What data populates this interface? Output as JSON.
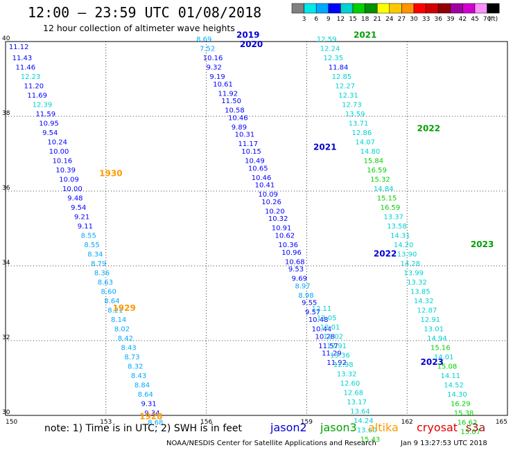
{
  "header": {
    "title": "12:00 – 23:59 UTC 01/08/2018",
    "subtitle": "12 hour collection of altimeter wave heights"
  },
  "footer": {
    "note": "note:  1) Time is in UTC; 2) SWH is in feet",
    "credit": "NOAA/NESDIS Center for Satellite Applications and Research",
    "generated": "Jan  9 13:27:53 UTC 2018"
  },
  "satellites": [
    {
      "name": "jason2",
      "color": "#0000d0"
    },
    {
      "name": "jason3",
      "color": "#00a000"
    },
    {
      "name": "altika",
      "color": "#ff9900"
    },
    {
      "name": "cryosat",
      "color": "#e00000"
    },
    {
      "name": "s3a",
      "color": "#a01818"
    }
  ],
  "colorbar": {
    "unit": "(ft)",
    "colors": [
      "#808080",
      "#00e8e8",
      "#00a8ff",
      "#0000ff",
      "#00d0d0",
      "#00d000",
      "#009000",
      "#ffff00",
      "#ffc800",
      "#ff9600",
      "#ff0000",
      "#d00000",
      "#900000",
      "#a000a0",
      "#d000d0",
      "#ff90ff",
      "#000000"
    ],
    "labels": [
      "3",
      "6",
      "9",
      "12",
      "15",
      "18",
      "21",
      "24",
      "27",
      "30",
      "33",
      "36",
      "39",
      "42",
      "45",
      "70"
    ]
  },
  "chart_data": {
    "type": "scatter",
    "xlabel": "",
    "ylabel": "",
    "xlim": [
      150,
      165
    ],
    "ylim": [
      30,
      40
    ],
    "xticks": [
      150,
      153,
      156,
      159,
      162,
      165
    ],
    "yticks": [
      30,
      32,
      34,
      36,
      38,
      40
    ],
    "grid": true,
    "units": "ft",
    "tracks": [
      {
        "satellite": "altika",
        "color": "#ff9900",
        "labels": [
          {
            "text": "1930",
            "lon": 152.8,
            "lat": 36.4
          },
          {
            "text": "1929",
            "lon": 153.2,
            "lat": 32.8
          },
          {
            "text": "1928",
            "lon": 154.0,
            "lat": 29.9
          }
        ],
        "points": [
          [
            150.1,
            39.8,
            "11.12"
          ],
          [
            150.2,
            39.5,
            "11.43"
          ],
          [
            150.3,
            39.25,
            "11.46"
          ],
          [
            150.45,
            39.0,
            "12.23"
          ],
          [
            150.55,
            38.75,
            "11.20"
          ],
          [
            150.65,
            38.5,
            "11.69"
          ],
          [
            150.8,
            38.25,
            "12.39"
          ],
          [
            150.9,
            38.0,
            "11.59"
          ],
          [
            151.0,
            37.75,
            "10.95"
          ],
          [
            151.1,
            37.5,
            "9.54"
          ],
          [
            151.25,
            37.25,
            "10.24"
          ],
          [
            151.3,
            37.0,
            "10.00"
          ],
          [
            151.4,
            36.75,
            "10.16"
          ],
          [
            151.5,
            36.5,
            "10.39"
          ],
          [
            151.6,
            36.25,
            "10.09"
          ],
          [
            151.7,
            36.0,
            "10.00"
          ],
          [
            151.85,
            35.75,
            "9.48"
          ],
          [
            151.95,
            35.5,
            "9.54"
          ],
          [
            152.05,
            35.25,
            "9.21"
          ],
          [
            152.15,
            35.0,
            "9.11"
          ],
          [
            152.25,
            34.75,
            "8.55"
          ],
          [
            152.35,
            34.5,
            "8.55"
          ],
          [
            152.45,
            34.25,
            "8.34"
          ],
          [
            152.55,
            34.0,
            "8.79"
          ],
          [
            152.65,
            33.75,
            "8.36"
          ],
          [
            152.75,
            33.5,
            "8.63"
          ],
          [
            152.85,
            33.25,
            "8.60"
          ],
          [
            152.95,
            33.0,
            "8.64"
          ],
          [
            153.05,
            32.75,
            "8.21"
          ],
          [
            153.15,
            32.5,
            "8.14"
          ],
          [
            153.25,
            32.25,
            "8.02"
          ],
          [
            153.35,
            32.0,
            "8.42"
          ],
          [
            153.45,
            31.75,
            "8.43"
          ],
          [
            153.55,
            31.5,
            "8.73"
          ],
          [
            153.65,
            31.25,
            "8.32"
          ],
          [
            153.75,
            31.0,
            "8.43"
          ],
          [
            153.85,
            30.75,
            "8.84"
          ],
          [
            153.95,
            30.5,
            "8.64"
          ],
          [
            154.05,
            30.25,
            "9.31"
          ],
          [
            154.15,
            30.0,
            "9.34"
          ],
          [
            154.25,
            29.75,
            "8.68"
          ]
        ]
      },
      {
        "satellite": "jason2",
        "color": "#0000d0",
        "labels": [
          {
            "text": "2019",
            "lon": 156.9,
            "lat": 40.1
          },
          {
            "text": "2020",
            "lon": 157.0,
            "lat": 39.85
          },
          {
            "text": "2021",
            "lon": 159.2,
            "lat": 37.1
          },
          {
            "text": "2022",
            "lon": 161.0,
            "lat": 34.25
          },
          {
            "text": "2023",
            "lon": 162.4,
            "lat": 31.35
          }
        ],
        "points": [
          [
            155.7,
            40.0,
            "8.69"
          ],
          [
            155.8,
            39.75,
            "7.52"
          ],
          [
            155.9,
            39.5,
            "10.16"
          ],
          [
            156.0,
            39.25,
            "9.32"
          ],
          [
            156.1,
            39.0,
            "9.19"
          ],
          [
            156.2,
            38.8,
            "10.61"
          ],
          [
            156.35,
            38.55,
            "11.92"
          ],
          [
            156.45,
            38.35,
            "11.50"
          ],
          [
            156.55,
            38.1,
            "10.58"
          ],
          [
            156.65,
            37.9,
            "10.46"
          ],
          [
            156.75,
            37.65,
            "9.89"
          ],
          [
            156.85,
            37.45,
            "10.31"
          ],
          [
            156.95,
            37.2,
            "11.17"
          ],
          [
            157.05,
            37.0,
            "10.15"
          ],
          [
            157.15,
            36.75,
            "10.49"
          ],
          [
            157.25,
            36.55,
            "10.65"
          ],
          [
            157.35,
            36.3,
            "10.46"
          ],
          [
            157.45,
            36.1,
            "10.41"
          ],
          [
            157.55,
            35.85,
            "10.09"
          ],
          [
            157.65,
            35.65,
            "10.26"
          ],
          [
            157.75,
            35.4,
            "10.20"
          ],
          [
            157.85,
            35.2,
            "10.32"
          ],
          [
            157.95,
            34.95,
            "10.91"
          ],
          [
            158.05,
            34.75,
            "10.62"
          ],
          [
            158.15,
            34.5,
            "10.36"
          ],
          [
            158.25,
            34.3,
            "10.96"
          ],
          [
            158.35,
            34.05,
            "10.68"
          ],
          [
            158.45,
            33.85,
            "9.53"
          ],
          [
            158.55,
            33.6,
            "9.69"
          ],
          [
            158.65,
            33.4,
            "8.97"
          ],
          [
            158.75,
            33.15,
            "8.98"
          ],
          [
            158.85,
            32.95,
            "9.55"
          ],
          [
            158.95,
            32.7,
            "9.57"
          ],
          [
            159.05,
            32.5,
            "10.48"
          ],
          [
            159.15,
            32.25,
            "10.44"
          ],
          [
            159.25,
            32.05,
            "10.28"
          ],
          [
            159.35,
            31.8,
            "11.57"
          ],
          [
            159.45,
            31.6,
            "11.29"
          ],
          [
            159.6,
            31.35,
            "11.92"
          ]
        ]
      },
      {
        "satellite": "jason3",
        "color": "#00a000",
        "labels": [
          {
            "text": "2021",
            "lon": 160.4,
            "lat": 40.1
          },
          {
            "text": "2022",
            "lon": 162.3,
            "lat": 37.6
          },
          {
            "text": "2023",
            "lon": 163.9,
            "lat": 34.5
          }
        ],
        "points": [
          [
            159.15,
            32.8,
            "12.11"
          ],
          [
            159.3,
            32.55,
            "12.05"
          ],
          [
            159.4,
            32.3,
            "12.01"
          ],
          [
            159.5,
            32.05,
            "12.02"
          ],
          [
            159.6,
            31.8,
            "12.91"
          ],
          [
            159.7,
            31.55,
            "13.36"
          ],
          [
            159.8,
            31.3,
            "12.98"
          ],
          [
            159.9,
            31.05,
            "13.32"
          ],
          [
            160.0,
            30.8,
            "12.60"
          ],
          [
            160.1,
            30.55,
            "12.68"
          ],
          [
            160.2,
            30.3,
            "13.17"
          ],
          [
            160.3,
            30.05,
            "13.64"
          ],
          [
            160.4,
            29.8,
            "14.24"
          ],
          [
            160.5,
            29.55,
            "13.60"
          ],
          [
            160.6,
            29.3,
            "15.43"
          ]
        ]
      },
      {
        "satellite": "jason3-north",
        "color": "#00a000",
        "labels": [],
        "points": [
          [
            159.3,
            40.0,
            "12.59"
          ],
          [
            159.4,
            39.75,
            "12.24"
          ],
          [
            159.5,
            39.5,
            "12.35"
          ],
          [
            159.65,
            39.25,
            "11.84"
          ],
          [
            159.75,
            39.0,
            "12.85"
          ],
          [
            159.85,
            38.75,
            "12.27"
          ],
          [
            159.95,
            38.5,
            "12.31"
          ],
          [
            160.05,
            38.25,
            "12.73"
          ],
          [
            160.15,
            38.0,
            "13.59"
          ],
          [
            160.25,
            37.75,
            "13.71"
          ],
          [
            160.35,
            37.5,
            "12.86"
          ],
          [
            160.45,
            37.25,
            "14.07"
          ],
          [
            160.6,
            37.0,
            "14.80"
          ],
          [
            160.7,
            36.75,
            "15.84"
          ],
          [
            160.8,
            36.5,
            "16.59"
          ],
          [
            160.9,
            36.25,
            "15.32"
          ],
          [
            161.0,
            36.0,
            "14.84"
          ],
          [
            161.1,
            35.75,
            "15.15"
          ],
          [
            161.2,
            35.5,
            "16.59"
          ],
          [
            161.3,
            35.25,
            "13.37"
          ],
          [
            161.4,
            35.0,
            "13.58"
          ],
          [
            161.5,
            34.75,
            "14.31"
          ],
          [
            161.6,
            34.5,
            "14.20"
          ],
          [
            161.7,
            34.25,
            "13.90"
          ],
          [
            161.8,
            34.0,
            "14.28"
          ],
          [
            161.9,
            33.75,
            "13.99"
          ],
          [
            162.0,
            33.5,
            "13.32"
          ],
          [
            162.1,
            33.25,
            "13.85"
          ],
          [
            162.2,
            33.0,
            "14.32"
          ],
          [
            162.3,
            32.75,
            "12.87"
          ],
          [
            162.4,
            32.5,
            "12.91"
          ],
          [
            162.5,
            32.25,
            "13.01"
          ],
          [
            162.6,
            32.0,
            "14.94"
          ],
          [
            162.7,
            31.75,
            "15.16"
          ],
          [
            162.8,
            31.5,
            "14.01"
          ],
          [
            162.9,
            31.25,
            "15.08"
          ],
          [
            163.0,
            31.0,
            "14.11"
          ],
          [
            163.1,
            30.75,
            "14.52"
          ],
          [
            163.2,
            30.5,
            "14.30"
          ],
          [
            163.3,
            30.25,
            "16.29"
          ],
          [
            163.4,
            30.0,
            "15.38"
          ],
          [
            163.5,
            29.75,
            "16.62"
          ],
          [
            163.6,
            29.5,
            "15.07"
          ]
        ]
      }
    ]
  }
}
